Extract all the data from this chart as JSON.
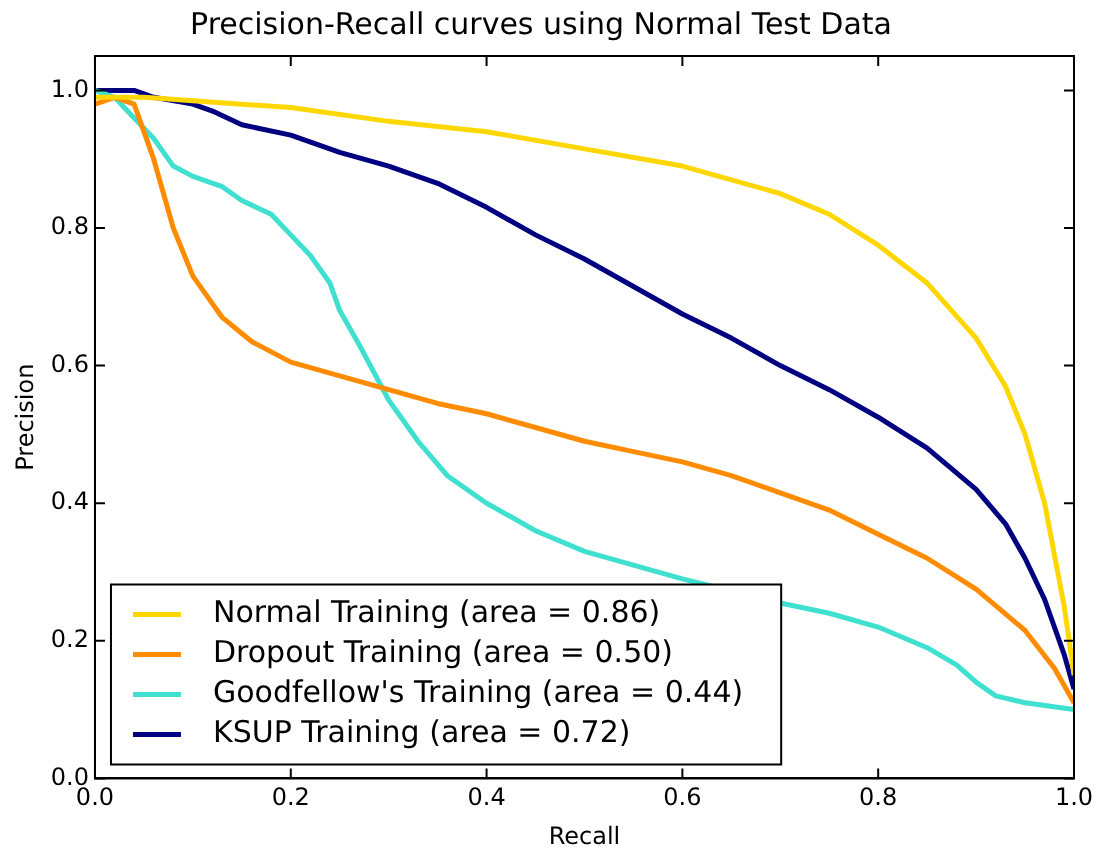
{
  "chart_data": {
    "type": "line",
    "title": "Precision-Recall curves using Normal Test Data",
    "xlabel": "Recall",
    "ylabel": "Precision",
    "xlim": [
      0,
      1
    ],
    "ylim": [
      0,
      1.05
    ],
    "xticks": [
      {
        "value": 0,
        "label": "0.0"
      },
      {
        "value": 0.2,
        "label": "0.2"
      },
      {
        "value": 0.4,
        "label": "0.4"
      },
      {
        "value": 0.6,
        "label": "0.6"
      },
      {
        "value": 0.8,
        "label": "0.8"
      },
      {
        "value": 1,
        "label": "1.0"
      }
    ],
    "yticks": [
      {
        "value": 0,
        "label": "0.0"
      },
      {
        "value": 0.2,
        "label": "0.2"
      },
      {
        "value": 0.4,
        "label": "0.4"
      },
      {
        "value": 0.6,
        "label": "0.6"
      },
      {
        "value": 0.8,
        "label": "0.8"
      },
      {
        "value": 1,
        "label": "1.0"
      }
    ],
    "grid": false,
    "legend": "bottom left",
    "marker": "none",
    "line_style": "solid",
    "series": [
      {
        "name": "Normal Training (area = 0.86)",
        "color": "#ffd700",
        "x": [
          0,
          0.05,
          0.1,
          0.15,
          0.2,
          0.3,
          0.4,
          0.5,
          0.6,
          0.7,
          0.75,
          0.8,
          0.85,
          0.9,
          0.93,
          0.95,
          0.97,
          0.99,
          1.0
        ],
        "values": [
          0.99,
          0.99,
          0.985,
          0.98,
          0.975,
          0.955,
          0.94,
          0.915,
          0.89,
          0.85,
          0.82,
          0.775,
          0.72,
          0.64,
          0.57,
          0.5,
          0.4,
          0.25,
          0.15
        ]
      },
      {
        "name": "Dropout Training (area = 0.50)",
        "color": "#ff8c00",
        "x": [
          0,
          0.02,
          0.04,
          0.06,
          0.08,
          0.1,
          0.13,
          0.16,
          0.2,
          0.25,
          0.3,
          0.35,
          0.4,
          0.45,
          0.5,
          0.55,
          0.6,
          0.65,
          0.7,
          0.75,
          0.8,
          0.85,
          0.9,
          0.95,
          0.98,
          1.0
        ],
        "values": [
          0.98,
          0.99,
          0.98,
          0.9,
          0.8,
          0.73,
          0.67,
          0.635,
          0.605,
          0.585,
          0.565,
          0.545,
          0.53,
          0.51,
          0.49,
          0.475,
          0.46,
          0.44,
          0.415,
          0.39,
          0.355,
          0.32,
          0.275,
          0.215,
          0.16,
          0.11
        ]
      },
      {
        "name": "Goodfellow's Training (area = 0.44)",
        "color": "#40e0d0",
        "x": [
          0,
          0.02,
          0.04,
          0.06,
          0.08,
          0.1,
          0.13,
          0.15,
          0.18,
          0.2,
          0.22,
          0.24,
          0.25,
          0.27,
          0.3,
          0.33,
          0.36,
          0.4,
          0.45,
          0.5,
          0.55,
          0.6,
          0.7,
          0.75,
          0.8,
          0.85,
          0.88,
          0.9,
          0.92,
          0.95,
          1.0
        ],
        "values": [
          1.0,
          0.99,
          0.96,
          0.93,
          0.89,
          0.875,
          0.86,
          0.84,
          0.82,
          0.79,
          0.76,
          0.72,
          0.68,
          0.63,
          0.55,
          0.49,
          0.44,
          0.4,
          0.36,
          0.33,
          0.31,
          0.29,
          0.255,
          0.24,
          0.22,
          0.19,
          0.165,
          0.14,
          0.12,
          0.11,
          0.1
        ]
      },
      {
        "name": "KSUP Training (area = 0.72)",
        "color": "#000080",
        "x": [
          0,
          0.04,
          0.06,
          0.1,
          0.12,
          0.15,
          0.2,
          0.25,
          0.3,
          0.35,
          0.4,
          0.45,
          0.5,
          0.55,
          0.6,
          0.65,
          0.7,
          0.75,
          0.8,
          0.85,
          0.9,
          0.93,
          0.95,
          0.97,
          0.99,
          1.0
        ],
        "values": [
          1.0,
          1.0,
          0.99,
          0.98,
          0.97,
          0.95,
          0.935,
          0.91,
          0.89,
          0.865,
          0.83,
          0.79,
          0.755,
          0.715,
          0.675,
          0.64,
          0.6,
          0.565,
          0.525,
          0.48,
          0.42,
          0.37,
          0.32,
          0.26,
          0.18,
          0.13
        ]
      }
    ]
  }
}
